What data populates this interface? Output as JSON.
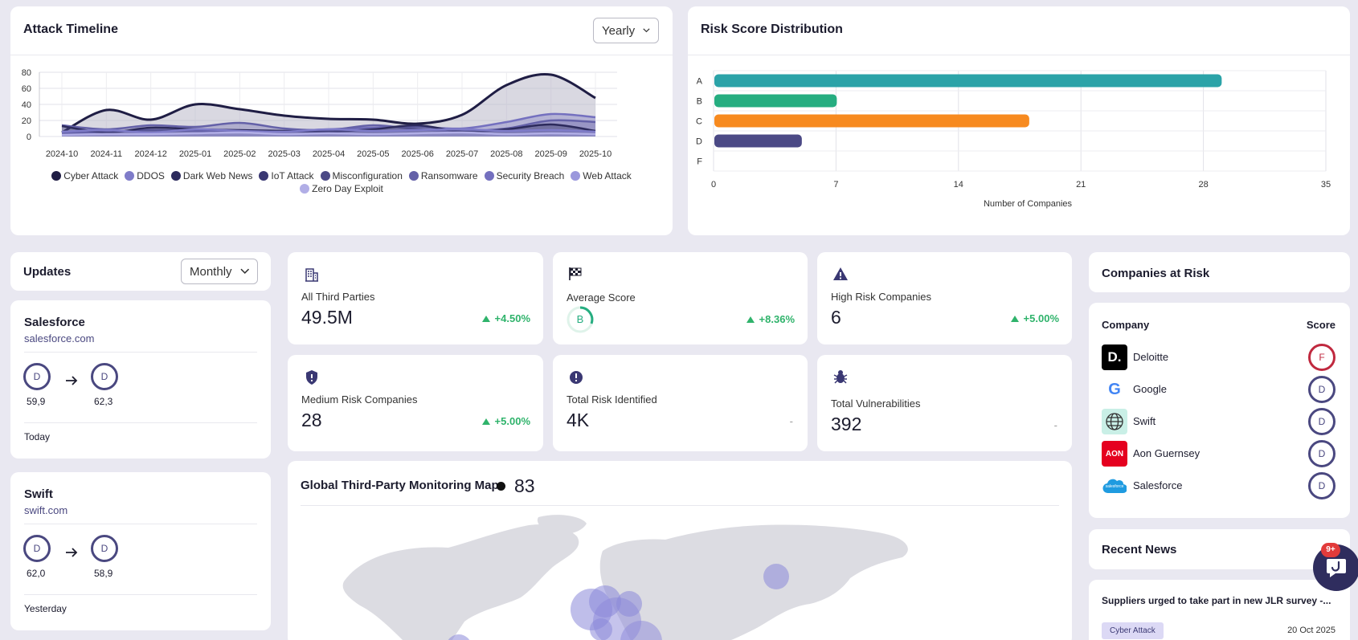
{
  "timeline": {
    "title": "Attack Timeline",
    "period": "Yearly",
    "y_ticks": [
      "80",
      "60",
      "40",
      "20",
      "0"
    ],
    "months": [
      "2024-10",
      "2024-11",
      "2024-12",
      "2025-01",
      "2025-02",
      "2025-03",
      "2025-04",
      "2025-05",
      "2025-06",
      "2025-07",
      "2025-08",
      "2025-09",
      "2025-10"
    ],
    "legend": [
      {
        "label": "Cyber Attack",
        "color": "#1f1d44"
      },
      {
        "label": "DDOS",
        "color": "#7f7cc9"
      },
      {
        "label": "Dark Web News",
        "color": "#2c2a5c"
      },
      {
        "label": "IoT Attack",
        "color": "#3a3873"
      },
      {
        "label": "Misconfiguration",
        "color": "#4c4a86"
      },
      {
        "label": "Ransomware",
        "color": "#6461a8"
      },
      {
        "label": "Security Breach",
        "color": "#7470bf"
      },
      {
        "label": "Web Attack",
        "color": "#9b98dc"
      },
      {
        "label": "Zero Day Exploit",
        "color": "#b1aee6"
      }
    ]
  },
  "chart_data": [
    {
      "type": "area",
      "title": "Attack Timeline",
      "x": [
        "2024-10",
        "2024-11",
        "2024-12",
        "2025-01",
        "2025-02",
        "2025-03",
        "2025-04",
        "2025-05",
        "2025-06",
        "2025-07",
        "2025-08",
        "2025-09",
        "2025-10"
      ],
      "ylim": [
        0,
        80
      ],
      "series": [
        {
          "name": "Cyber Attack",
          "values": [
            5,
            33,
            21,
            40,
            34,
            26,
            22,
            21,
            16,
            27,
            64,
            77,
            48
          ]
        },
        {
          "name": "Security Breach",
          "values": [
            4,
            6,
            8,
            7,
            6,
            7,
            9,
            11,
            12,
            10,
            18,
            28,
            24
          ]
        },
        {
          "name": "Ransomware",
          "values": [
            14,
            9,
            14,
            12,
            17,
            10,
            8,
            14,
            9,
            7,
            10,
            20,
            18
          ]
        },
        {
          "name": "Dark Web News",
          "values": [
            13,
            5,
            11,
            9,
            8,
            7,
            6,
            9,
            14,
            6,
            9,
            15,
            7
          ]
        },
        {
          "name": "DDOS",
          "values": [
            6,
            8,
            5,
            9,
            7,
            6,
            9,
            7,
            8,
            9,
            7,
            8,
            6
          ]
        },
        {
          "name": "Zero Day Exploit",
          "values": [
            2,
            3,
            3,
            4,
            5,
            3,
            4,
            3,
            4,
            5,
            3,
            4,
            3
          ]
        }
      ]
    },
    {
      "type": "bar",
      "title": "Risk Score Distribution",
      "orientation": "horizontal",
      "categories": [
        "A",
        "B",
        "C",
        "D",
        "F"
      ],
      "values": [
        29,
        7,
        18,
        5,
        0
      ],
      "colors": [
        "#2ba3a8",
        "#26ad80",
        "#f78a1f",
        "#4b4985",
        "#cccccc"
      ],
      "xlabel": "Number of Companies",
      "xlim": [
        0,
        35
      ],
      "x_ticks": [
        "0",
        "7",
        "14",
        "21",
        "28",
        "35"
      ]
    }
  ],
  "risk": {
    "title": "Risk Score Distribution",
    "xlabel": "Number of Companies",
    "categories": [
      "A",
      "B",
      "C",
      "D",
      "F"
    ],
    "ticks": [
      "0",
      "7",
      "14",
      "21",
      "28",
      "35"
    ]
  },
  "updates": {
    "title": "Updates",
    "period": "Monthly",
    "items": [
      {
        "company": "Salesforce",
        "domain": "salesforce.com",
        "from_grade": "D",
        "from_score": "59,9",
        "to_grade": "D",
        "to_score": "62,3",
        "when": "Today"
      },
      {
        "company": "Swift",
        "domain": "swift.com",
        "from_grade": "D",
        "from_score": "62,0",
        "to_grade": "D",
        "to_score": "58,9",
        "when": "Yesterday"
      }
    ]
  },
  "stats": {
    "all_third_parties": {
      "label": "All Third Parties",
      "value": "49.5M",
      "change": "+4.50%"
    },
    "average_score": {
      "label": "Average Score",
      "grade": "B",
      "change": "+8.36%"
    },
    "high_risk": {
      "label": "High Risk Companies",
      "value": "6",
      "change": "+5.00%"
    },
    "medium_risk": {
      "label": "Medium Risk Companies",
      "value": "28",
      "change": "+5.00%"
    },
    "total_risk": {
      "label": "Total Risk Identified",
      "value": "4K",
      "change": "-"
    },
    "total_vulns": {
      "label": "Total Vulnerabilities",
      "value": "392",
      "change": "-"
    }
  },
  "map": {
    "title": "Global Third-Party Monitoring Map",
    "count": "83"
  },
  "companies_at_risk": {
    "title": "Companies at Risk",
    "col_company": "Company",
    "col_score": "Score",
    "rows": [
      {
        "name": "Deloitte",
        "grade": "F",
        "logo_letter": "D."
      },
      {
        "name": "Google",
        "grade": "D",
        "logo_letter": "G"
      },
      {
        "name": "Swift",
        "grade": "D",
        "logo_letter": ""
      },
      {
        "name": "Aon Guernsey",
        "grade": "D",
        "logo_letter": "AON"
      },
      {
        "name": "Salesforce",
        "grade": "D",
        "logo_letter": "salesforce"
      }
    ]
  },
  "news": {
    "title": "Recent News",
    "items": [
      {
        "headline": "Suppliers urged to take part in new JLR survey -...",
        "tag": "Cyber Attack",
        "date": "20 Oct 2025"
      }
    ]
  },
  "chat": {
    "badge": "9+"
  }
}
